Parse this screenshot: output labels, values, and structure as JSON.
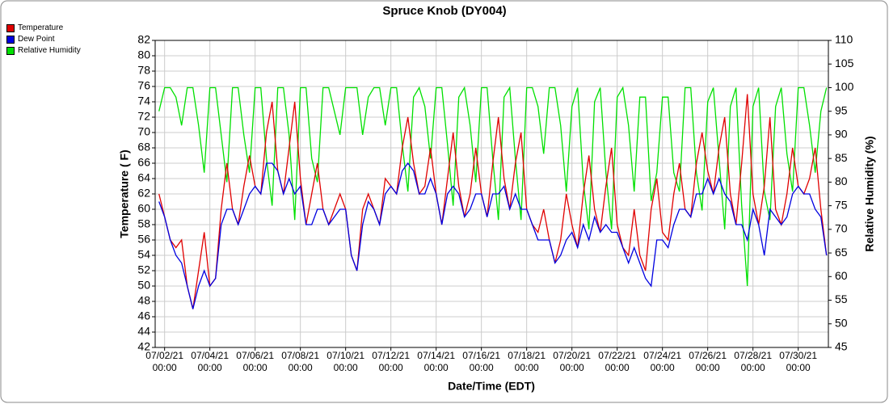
{
  "chart_data": {
    "type": "line",
    "title": "Spruce Knob (DY004)",
    "xlabel": "Date/Time (EDT)",
    "ylabel": "Temperature ( F)",
    "y2label": "Relative Humidity (%)",
    "legend": "top-left",
    "grid": true,
    "xlim": [
      "07/01/21 14:00",
      "07/31/21 08:00"
    ],
    "xticks": [
      {
        "value": "07/02/21 00:00",
        "label": "07/02/21\n00:00"
      },
      {
        "value": "07/04/21 00:00",
        "label": "07/04/21\n00:00"
      },
      {
        "value": "07/06/21 00:00",
        "label": "07/06/21\n00:00"
      },
      {
        "value": "07/08/21 00:00",
        "label": "07/08/21\n00:00"
      },
      {
        "value": "07/10/21 00:00",
        "label": "07/10/21\n00:00"
      },
      {
        "value": "07/12/21 00:00",
        "label": "07/12/21\n00:00"
      },
      {
        "value": "07/14/21 00:00",
        "label": "07/14/21\n00:00"
      },
      {
        "value": "07/16/21 00:00",
        "label": "07/16/21\n00:00"
      },
      {
        "value": "07/18/21 00:00",
        "label": "07/18/21\n00:00"
      },
      {
        "value": "07/20/21 00:00",
        "label": "07/20/21\n00:00"
      },
      {
        "value": "07/22/21 00:00",
        "label": "07/22/21\n00:00"
      },
      {
        "value": "07/24/21 00:00",
        "label": "07/24/21\n00:00"
      },
      {
        "value": "07/26/21 00:00",
        "label": "07/26/21\n00:00"
      },
      {
        "value": "07/28/21 00:00",
        "label": "07/28/21\n00:00"
      },
      {
        "value": "07/30/21 00:00",
        "label": "07/30/21\n00:00"
      }
    ],
    "ylim": [
      42,
      82
    ],
    "yticks": [
      42,
      44,
      46,
      48,
      50,
      52,
      54,
      56,
      58,
      60,
      62,
      64,
      66,
      68,
      70,
      72,
      74,
      76,
      78,
      80,
      82
    ],
    "y2lim": [
      45,
      110
    ],
    "y2ticks": [
      45,
      50,
      55,
      60,
      65,
      70,
      75,
      80,
      85,
      90,
      95,
      100,
      105,
      110
    ],
    "x": [
      "07/01/21 18:00",
      "07/02/21 00:00",
      "07/02/21 06:00",
      "07/02/21 12:00",
      "07/02/21 18:00",
      "07/03/21 00:00",
      "07/03/21 06:00",
      "07/03/21 12:00",
      "07/03/21 18:00",
      "07/04/21 00:00",
      "07/04/21 06:00",
      "07/04/21 12:00",
      "07/04/21 18:00",
      "07/05/21 00:00",
      "07/05/21 06:00",
      "07/05/21 12:00",
      "07/05/21 18:00",
      "07/06/21 00:00",
      "07/06/21 06:00",
      "07/06/21 12:00",
      "07/06/21 18:00",
      "07/07/21 00:00",
      "07/07/21 06:00",
      "07/07/21 12:00",
      "07/07/21 18:00",
      "07/08/21 00:00",
      "07/08/21 06:00",
      "07/08/21 12:00",
      "07/08/21 18:00",
      "07/09/21 00:00",
      "07/09/21 06:00",
      "07/09/21 12:00",
      "07/09/21 18:00",
      "07/10/21 00:00",
      "07/10/21 06:00",
      "07/10/21 12:00",
      "07/10/21 18:00",
      "07/11/21 00:00",
      "07/11/21 06:00",
      "07/11/21 12:00",
      "07/11/21 18:00",
      "07/12/21 00:00",
      "07/12/21 06:00",
      "07/12/21 12:00",
      "07/12/21 18:00",
      "07/13/21 00:00",
      "07/13/21 06:00",
      "07/13/21 12:00",
      "07/13/21 18:00",
      "07/14/21 00:00",
      "07/14/21 06:00",
      "07/14/21 12:00",
      "07/14/21 18:00",
      "07/15/21 00:00",
      "07/15/21 06:00",
      "07/15/21 12:00",
      "07/15/21 18:00",
      "07/16/21 00:00",
      "07/16/21 06:00",
      "07/16/21 12:00",
      "07/16/21 18:00",
      "07/17/21 00:00",
      "07/17/21 06:00",
      "07/17/21 12:00",
      "07/17/21 18:00",
      "07/18/21 00:00",
      "07/18/21 06:00",
      "07/18/21 12:00",
      "07/18/21 18:00",
      "07/19/21 00:00",
      "07/19/21 06:00",
      "07/19/21 12:00",
      "07/19/21 18:00",
      "07/20/21 00:00",
      "07/20/21 06:00",
      "07/20/21 12:00",
      "07/20/21 18:00",
      "07/21/21 00:00",
      "07/21/21 06:00",
      "07/21/21 12:00",
      "07/21/21 18:00",
      "07/22/21 00:00",
      "07/22/21 06:00",
      "07/22/21 12:00",
      "07/22/21 18:00",
      "07/23/21 00:00",
      "07/23/21 06:00",
      "07/23/21 12:00",
      "07/23/21 18:00",
      "07/24/21 00:00",
      "07/24/21 06:00",
      "07/24/21 12:00",
      "07/24/21 18:00",
      "07/25/21 00:00",
      "07/25/21 06:00",
      "07/25/21 12:00",
      "07/25/21 18:00",
      "07/26/21 00:00",
      "07/26/21 06:00",
      "07/26/21 12:00",
      "07/26/21 18:00",
      "07/27/21 00:00",
      "07/27/21 06:00",
      "07/27/21 12:00",
      "07/27/21 18:00",
      "07/28/21 00:00",
      "07/28/21 06:00",
      "07/28/21 12:00",
      "07/28/21 18:00",
      "07/29/21 00:00",
      "07/29/21 06:00",
      "07/29/21 12:00",
      "07/29/21 18:00",
      "07/30/21 00:00",
      "07/30/21 06:00",
      "07/30/21 12:00",
      "07/30/21 18:00",
      "07/31/21 00:00",
      "07/31/21 06:00"
    ],
    "series": [
      {
        "name": "Temperature",
        "color": "#e00000",
        "values": [
          62,
          59,
          56,
          55,
          56,
          50,
          47,
          52,
          57,
          50,
          51,
          60,
          66,
          60,
          58,
          63,
          67,
          63,
          62,
          70,
          74,
          65,
          62,
          68,
          74,
          64,
          58,
          62,
          66,
          60,
          58,
          60,
          62,
          60,
          54,
          52,
          60,
          62,
          60,
          58,
          64,
          63,
          62,
          68,
          72,
          66,
          62,
          63,
          68,
          62,
          58,
          64,
          70,
          63,
          59,
          62,
          68,
          62,
          59,
          66,
          72,
          64,
          60,
          66,
          70,
          60,
          58,
          57,
          60,
          56,
          53,
          56,
          62,
          58,
          55,
          62,
          67,
          60,
          57,
          63,
          68,
          58,
          55,
          54,
          60,
          54,
          52,
          60,
          64,
          57,
          56,
          62,
          66,
          60,
          59,
          66,
          70,
          65,
          62,
          68,
          72,
          62,
          58,
          66,
          75,
          62,
          58,
          63,
          72,
          60,
          58,
          62,
          68,
          63,
          62,
          64,
          68,
          60,
          54
        ]
      },
      {
        "name": "Dew Point",
        "color": "#0000e0",
        "values": [
          61,
          59,
          56,
          54,
          53,
          50,
          47,
          50,
          52,
          50,
          51,
          58,
          60,
          60,
          58,
          60,
          62,
          63,
          62,
          66,
          66,
          65,
          62,
          64,
          62,
          63,
          58,
          58,
          60,
          60,
          58,
          59,
          60,
          60,
          54,
          52,
          58,
          61,
          60,
          58,
          62,
          63,
          62,
          65,
          66,
          65,
          62,
          62,
          64,
          62,
          58,
          62,
          63,
          62,
          59,
          60,
          62,
          62,
          59,
          62,
          62,
          63,
          60,
          62,
          60,
          60,
          58,
          56,
          56,
          56,
          53,
          54,
          56,
          57,
          55,
          58,
          56,
          59,
          57,
          58,
          57,
          57,
          55,
          53,
          55,
          53,
          51,
          50,
          56,
          56,
          55,
          58,
          60,
          60,
          59,
          62,
          62,
          64,
          62,
          64,
          62,
          61,
          58,
          58,
          56,
          60,
          58,
          54,
          60,
          59,
          58,
          59,
          62,
          63,
          62,
          62,
          60,
          59,
          54
        ]
      },
      {
        "name": "Relative Humidity",
        "color": "#00e000",
        "axis": "y2",
        "values": [
          95,
          100,
          100,
          98,
          92,
          100,
          100,
          92,
          82,
          100,
          100,
          90,
          80,
          100,
          100,
          90,
          82,
          100,
          100,
          85,
          75,
          100,
          100,
          90,
          72,
          100,
          100,
          85,
          80,
          100,
          100,
          95,
          90,
          100,
          100,
          100,
          90,
          98,
          100,
          100,
          92,
          100,
          100,
          88,
          78,
          98,
          100,
          96,
          85,
          100,
          100,
          88,
          75,
          98,
          100,
          92,
          80,
          100,
          100,
          85,
          72,
          98,
          100,
          85,
          72,
          100,
          100,
          96,
          86,
          100,
          100,
          92,
          78,
          96,
          100,
          80,
          70,
          97,
          100,
          82,
          70,
          98,
          100,
          92,
          78,
          98,
          98,
          76,
          82,
          98,
          98,
          82,
          78,
          100,
          100,
          82,
          74,
          97,
          100,
          85,
          70,
          96,
          100,
          75,
          58,
          96,
          100,
          78,
          72,
          96,
          100,
          86,
          78,
          100,
          100,
          92,
          82,
          95,
          100
        ]
      }
    ]
  }
}
